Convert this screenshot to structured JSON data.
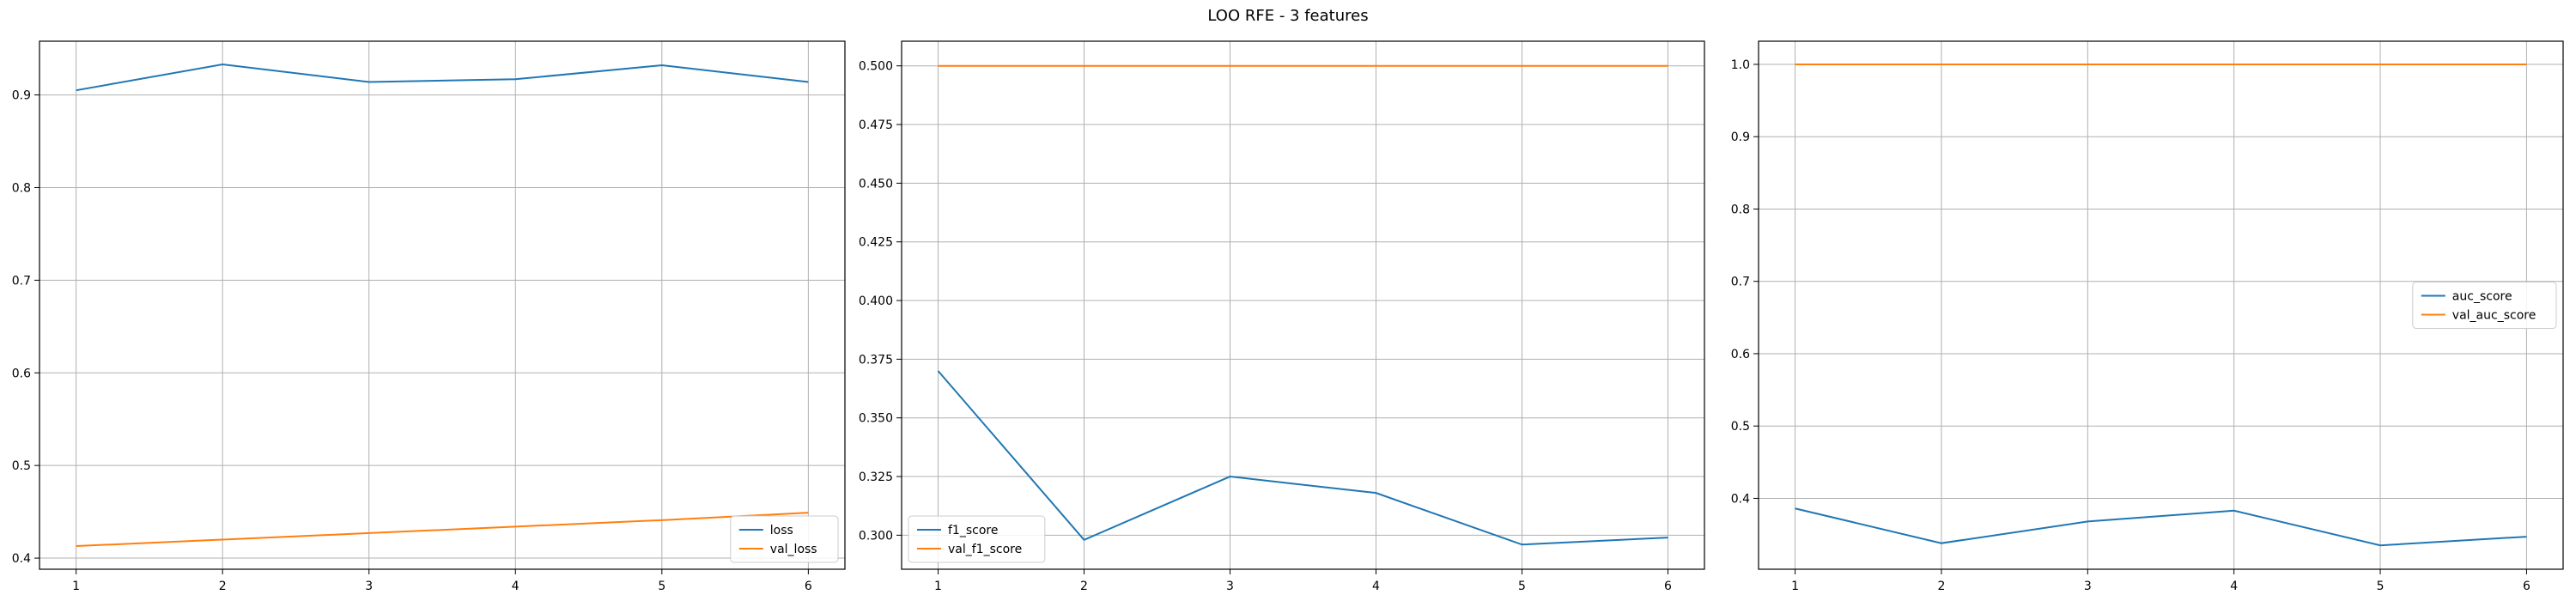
{
  "title": "LOO RFE - 3 features",
  "colors": {
    "series_0": "#1f77b4",
    "series_1": "#ff7f0e",
    "grid": "#b0b0b0",
    "axes": "#000000"
  },
  "chart_data": [
    {
      "type": "line",
      "x": [
        1,
        2,
        3,
        4,
        5,
        6
      ],
      "xticks": [
        "1",
        "2",
        "3",
        "4",
        "5",
        "6"
      ],
      "xlim": [
        0.75,
        6.25
      ],
      "ylim": [
        0.388,
        0.958
      ],
      "yticks": [
        0.4,
        0.5,
        0.6,
        0.7,
        0.8,
        0.9
      ],
      "ytick_labels": [
        "0.4",
        "0.5",
        "0.6",
        "0.7",
        "0.8",
        "0.9"
      ],
      "grid": true,
      "legend": "lower-right",
      "series": [
        {
          "name": "loss",
          "values": [
            0.905,
            0.933,
            0.914,
            0.917,
            0.932,
            0.914
          ]
        },
        {
          "name": "val_loss",
          "values": [
            0.413,
            0.42,
            0.427,
            0.434,
            0.441,
            0.449
          ]
        }
      ]
    },
    {
      "type": "line",
      "x": [
        1,
        2,
        3,
        4,
        5,
        6
      ],
      "xticks": [
        "1",
        "2",
        "3",
        "4",
        "5",
        "6"
      ],
      "xlim": [
        0.75,
        6.25
      ],
      "ylim": [
        0.2855,
        0.5105
      ],
      "yticks": [
        0.3,
        0.325,
        0.35,
        0.375,
        0.4,
        0.425,
        0.45,
        0.475,
        0.5
      ],
      "ytick_labels": [
        "0.300",
        "0.325",
        "0.350",
        "0.375",
        "0.400",
        "0.425",
        "0.450",
        "0.475",
        "0.500"
      ],
      "grid": true,
      "legend": "lower-left",
      "series": [
        {
          "name": "f1_score",
          "values": [
            0.37,
            0.298,
            0.325,
            0.318,
            0.296,
            0.299
          ]
        },
        {
          "name": "val_f1_score",
          "values": [
            0.5,
            0.5,
            0.5,
            0.5,
            0.5,
            0.5
          ]
        }
      ]
    },
    {
      "type": "line",
      "x": [
        1,
        2,
        3,
        4,
        5,
        6
      ],
      "xticks": [
        "1",
        "2",
        "3",
        "4",
        "5",
        "6"
      ],
      "xlim": [
        0.75,
        6.25
      ],
      "ylim": [
        0.302,
        1.032
      ],
      "yticks": [
        0.4,
        0.5,
        0.6,
        0.7,
        0.8,
        0.9,
        1.0
      ],
      "ytick_labels": [
        "0.4",
        "0.5",
        "0.6",
        "0.7",
        "0.8",
        "0.9",
        "1.0"
      ],
      "grid": true,
      "legend": "center-right",
      "series": [
        {
          "name": "auc_score",
          "values": [
            0.386,
            0.338,
            0.368,
            0.383,
            0.335,
            0.347
          ]
        },
        {
          "name": "val_auc_score",
          "values": [
            1.0,
            1.0,
            1.0,
            1.0,
            1.0,
            1.0
          ]
        }
      ]
    }
  ]
}
